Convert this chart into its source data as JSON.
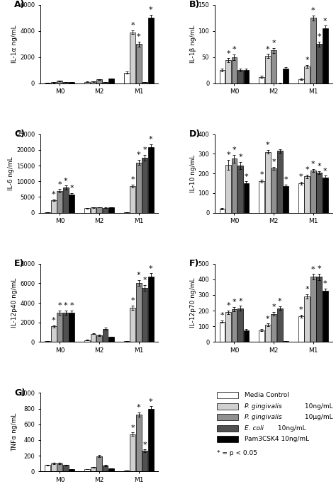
{
  "panels": [
    {
      "label": "A",
      "ylabel": "IL-1α ng/mL",
      "ylim": [
        0,
        6000
      ],
      "yticks": [
        0,
        2000,
        4000,
        6000
      ],
      "groups": [
        "M0",
        "M2",
        "M1"
      ],
      "data": [
        [
          30,
          120,
          800
        ],
        [
          70,
          140,
          3900
        ],
        [
          200,
          290,
          3000
        ],
        [
          80,
          95,
          100
        ],
        [
          100,
          340,
          5000
        ]
      ],
      "errors": [
        [
          5,
          15,
          80
        ],
        [
          10,
          20,
          150
        ],
        [
          25,
          35,
          200
        ],
        [
          10,
          10,
          15
        ],
        [
          15,
          30,
          250
        ]
      ],
      "sig": [
        [
          false,
          false,
          false
        ],
        [
          false,
          false,
          true
        ],
        [
          false,
          false,
          true
        ],
        [
          false,
          false,
          false
        ],
        [
          false,
          false,
          true
        ]
      ]
    },
    {
      "label": "B",
      "ylabel": "IL-1β ng/mL",
      "ylim": [
        0,
        150
      ],
      "yticks": [
        0,
        50,
        100,
        150
      ],
      "groups": [
        "M0",
        "M2",
        "M1"
      ],
      "data": [
        [
          25,
          12,
          8
        ],
        [
          44,
          52,
          32
        ],
        [
          50,
          63,
          125
        ],
        [
          25,
          0,
          75
        ],
        [
          25,
          28,
          105
        ]
      ],
      "errors": [
        [
          3,
          2,
          1
        ],
        [
          4,
          4,
          3
        ],
        [
          5,
          5,
          5
        ],
        [
          3,
          1,
          5
        ],
        [
          3,
          3,
          5
        ]
      ],
      "sig": [
        [
          false,
          false,
          false
        ],
        [
          true,
          true,
          true
        ],
        [
          true,
          true,
          true
        ],
        [
          false,
          false,
          true
        ],
        [
          false,
          false,
          true
        ]
      ]
    },
    {
      "label": "C",
      "ylabel": "IL-6 ng/mL",
      "ylim": [
        0,
        25000
      ],
      "yticks": [
        0,
        5000,
        10000,
        15000,
        20000,
        25000
      ],
      "groups": [
        "M0",
        "M2",
        "M1"
      ],
      "data": [
        [
          200,
          1400,
          200
        ],
        [
          4000,
          1600,
          8500
        ],
        [
          7000,
          1700,
          16000
        ],
        [
          8000,
          1500,
          17500
        ],
        [
          5800,
          1700,
          21000
        ]
      ],
      "errors": [
        [
          30,
          100,
          30
        ],
        [
          300,
          150,
          500
        ],
        [
          500,
          100,
          800
        ],
        [
          600,
          100,
          900
        ],
        [
          400,
          100,
          800
        ]
      ],
      "sig": [
        [
          false,
          false,
          false
        ],
        [
          true,
          false,
          true
        ],
        [
          true,
          false,
          true
        ],
        [
          true,
          false,
          true
        ],
        [
          true,
          false,
          true
        ]
      ]
    },
    {
      "label": "D",
      "ylabel": "IL-10 ng/mL",
      "ylim": [
        0,
        400
      ],
      "yticks": [
        0,
        100,
        200,
        300,
        400
      ],
      "groups": [
        "M0",
        "M2",
        "M1"
      ],
      "data": [
        [
          20,
          160,
          150
        ],
        [
          245,
          310,
          185
        ],
        [
          275,
          225,
          215
        ],
        [
          240,
          315,
          205
        ],
        [
          150,
          135,
          180
        ]
      ],
      "errors": [
        [
          3,
          8,
          8
        ],
        [
          25,
          10,
          10
        ],
        [
          20,
          8,
          8
        ],
        [
          18,
          10,
          8
        ],
        [
          10,
          8,
          8
        ]
      ],
      "sig": [
        [
          false,
          true,
          true
        ],
        [
          true,
          true,
          true
        ],
        [
          true,
          true,
          true
        ],
        [
          true,
          false,
          true
        ],
        [
          true,
          true,
          true
        ]
      ]
    },
    {
      "label": "E",
      "ylabel": "IL-12p40 ng/mL",
      "ylim": [
        0,
        8000
      ],
      "yticks": [
        0,
        2000,
        4000,
        6000,
        8000
      ],
      "groups": [
        "M0",
        "M2",
        "M1"
      ],
      "data": [
        [
          100,
          200,
          100
        ],
        [
          1600,
          850,
          3500
        ],
        [
          3000,
          700,
          6000
        ],
        [
          3000,
          1350,
          5500
        ],
        [
          3000,
          500,
          6700
        ]
      ],
      "errors": [
        [
          10,
          20,
          10
        ],
        [
          120,
          60,
          200
        ],
        [
          200,
          60,
          300
        ],
        [
          200,
          100,
          300
        ],
        [
          200,
          40,
          300
        ]
      ],
      "sig": [
        [
          false,
          false,
          false
        ],
        [
          true,
          false,
          true
        ],
        [
          true,
          false,
          true
        ],
        [
          true,
          false,
          true
        ],
        [
          true,
          false,
          true
        ]
      ]
    },
    {
      "label": "F",
      "ylabel": "IL-12p70 ng/mL",
      "ylim": [
        0,
        500
      ],
      "yticks": [
        0,
        100,
        200,
        300,
        400,
        500
      ],
      "groups": [
        "M0",
        "M2",
        "M1"
      ],
      "data": [
        [
          130,
          75,
          165
        ],
        [
          190,
          110,
          290
        ],
        [
          210,
          180,
          415
        ],
        [
          215,
          215,
          415
        ],
        [
          75,
          5,
          325
        ]
      ],
      "errors": [
        [
          8,
          6,
          10
        ],
        [
          12,
          8,
          15
        ],
        [
          15,
          12,
          18
        ],
        [
          15,
          12,
          20
        ],
        [
          6,
          1,
          15
        ]
      ],
      "sig": [
        [
          true,
          false,
          true
        ],
        [
          true,
          true,
          true
        ],
        [
          true,
          true,
          true
        ],
        [
          true,
          true,
          true
        ],
        [
          false,
          false,
          true
        ]
      ]
    },
    {
      "label": "G",
      "ylabel": "TNFα ng/mL",
      "ylim": [
        0,
        1000
      ],
      "yticks": [
        0,
        200,
        400,
        600,
        800,
        1000
      ],
      "groups": [
        "M0",
        "M2",
        "M1"
      ],
      "data": [
        [
          80,
          30,
          10
        ],
        [
          100,
          55,
          475
        ],
        [
          100,
          195,
          725
        ],
        [
          80,
          75,
          265
        ],
        [
          25,
          35,
          800
        ]
      ],
      "errors": [
        [
          6,
          3,
          1
        ],
        [
          8,
          5,
          20
        ],
        [
          8,
          15,
          25
        ],
        [
          6,
          6,
          15
        ],
        [
          3,
          3,
          30
        ]
      ],
      "sig": [
        [
          false,
          false,
          false
        ],
        [
          false,
          false,
          true
        ],
        [
          false,
          false,
          true
        ],
        [
          false,
          false,
          true
        ],
        [
          false,
          false,
          true
        ]
      ]
    }
  ],
  "bar_colors": [
    "#ffffff",
    "#d0d0d0",
    "#909090",
    "#505050",
    "#000000"
  ],
  "bar_edgecolor": "#000000",
  "legend_labels": [
    "Media Control",
    " P. gingivalis 10ng/mL",
    " P. gingivalis 10μg/mL",
    " E. coli 10ng/mL",
    "Pam3CSK4 10ng/mL"
  ],
  "legend_italic": [
    false,
    true,
    true,
    true,
    false
  ],
  "sig_note": "* = p < 0.05",
  "background_color": "#ffffff",
  "bar_width": 0.12,
  "fontsize": 6.5,
  "label_fontsize": 9
}
